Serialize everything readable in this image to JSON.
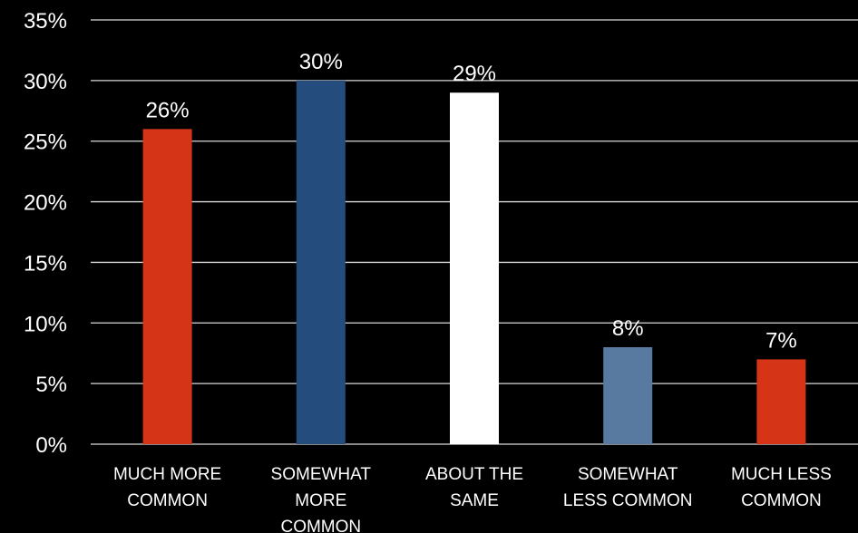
{
  "chart_data": {
    "type": "bar",
    "categories": [
      [
        "MUCH MORE",
        "COMMON"
      ],
      [
        "SOMEWHAT",
        "MORE",
        "COMMON"
      ],
      [
        "ABOUT THE",
        "SAME"
      ],
      [
        "SOMEWHAT",
        "LESS COMMON"
      ],
      [
        "MUCH LESS",
        "COMMON"
      ]
    ],
    "values": [
      26,
      30,
      29,
      8,
      7
    ],
    "data_labels": [
      "26%",
      "30%",
      "29%",
      "8%",
      "7%"
    ],
    "bar_colors": [
      "#d63417",
      "#244c7c",
      "#ffffff",
      "#587aa0",
      "#d63417"
    ],
    "y_ticks": [
      0,
      5,
      10,
      15,
      20,
      25,
      30,
      35
    ],
    "y_tick_labels": [
      "0%",
      "5%",
      "10%",
      "15%",
      "20%",
      "25%",
      "30%",
      "35%"
    ],
    "ylim": [
      0,
      35
    ],
    "grid": true,
    "background": "#000000",
    "text_color": "#ffffff",
    "grid_color": "#d9d9d9"
  }
}
